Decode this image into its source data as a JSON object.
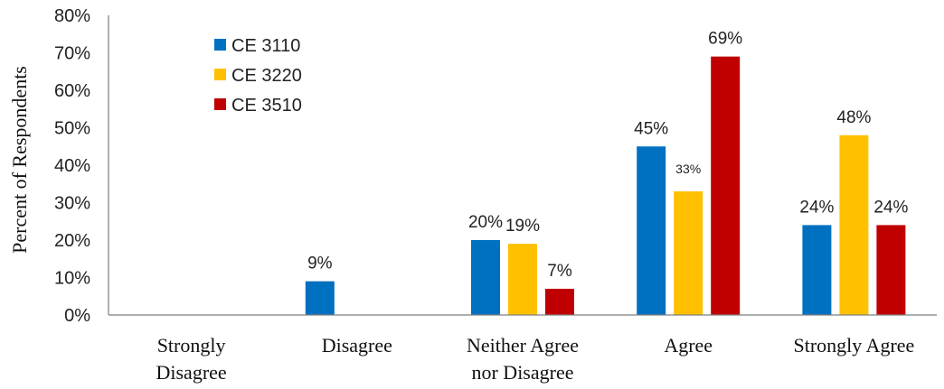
{
  "chart_data": {
    "type": "bar",
    "ylabel": "Percent of Respondents",
    "ylim": [
      0,
      80
    ],
    "y_ticks": [
      "0%",
      "10%",
      "20%",
      "30%",
      "40%",
      "50%",
      "60%",
      "70%",
      "80%"
    ],
    "grid": false,
    "legend_position": "top-left",
    "categories": [
      [
        "Strongly",
        "Disagree"
      ],
      [
        "Disagree"
      ],
      [
        "Neither Agree",
        "nor Disagree"
      ],
      [
        "Agree"
      ],
      [
        "Strongly Agree"
      ]
    ],
    "series": [
      {
        "name": "CE 3110",
        "color": "#0070C0",
        "values": [
          0,
          9,
          20,
          45,
          24
        ],
        "labels": [
          "",
          "9%",
          "20%",
          "45%",
          "24%"
        ]
      },
      {
        "name": "CE 3220",
        "color": "#FFC000",
        "values": [
          0,
          0,
          19,
          33,
          48
        ],
        "labels": [
          "",
          "",
          "19%",
          "33%",
          "48%"
        ]
      },
      {
        "name": "CE 3510",
        "color": "#C00000",
        "values": [
          0,
          0,
          7,
          69,
          24
        ],
        "labels": [
          "",
          "",
          "7%",
          "69%",
          "24%"
        ]
      }
    ]
  }
}
